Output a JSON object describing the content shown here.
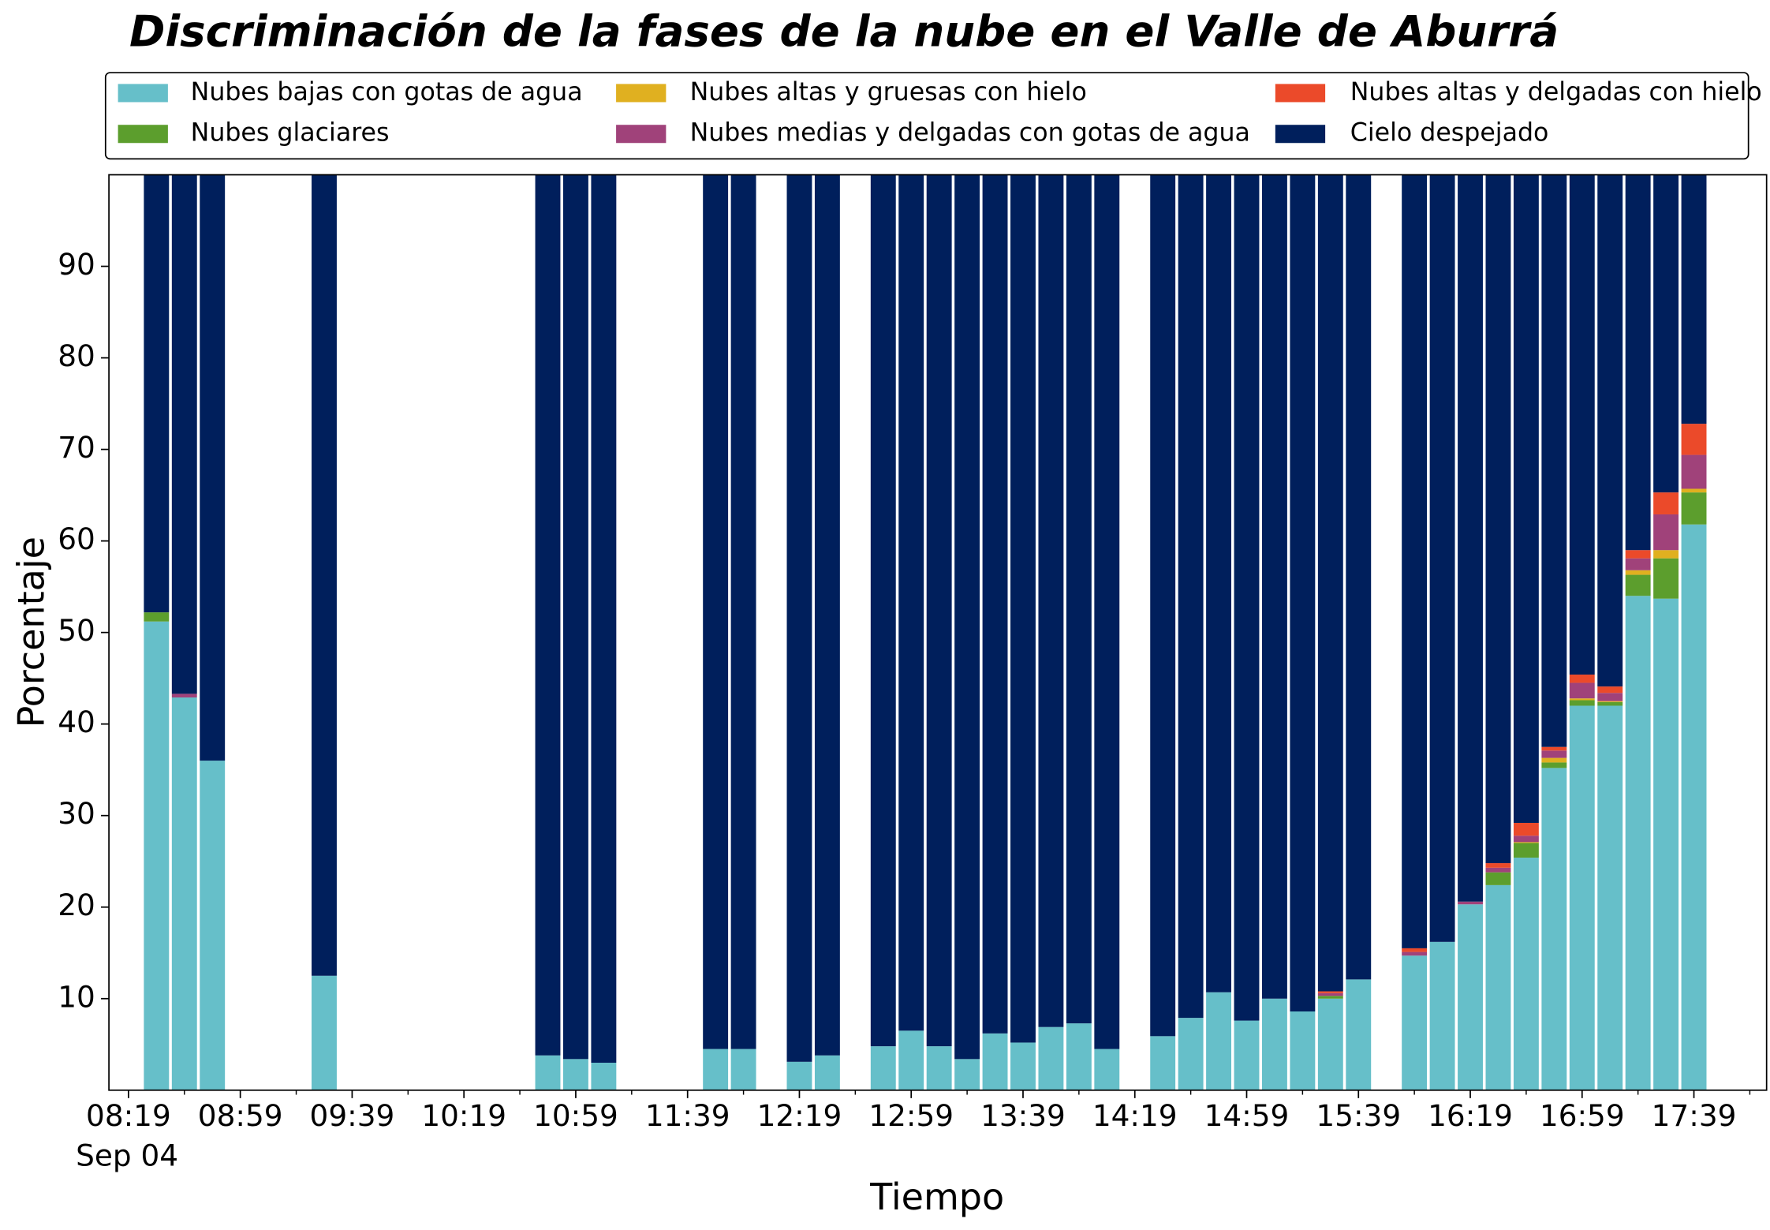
{
  "chart_data": {
    "type": "stacked_bar",
    "title": "Discriminación de la fases de la nube en el Valle de Aburrá",
    "xlabel": "Tiempo",
    "ylabel": "Porcentaje",
    "xdate_label": "Sep 04",
    "x": [
      "08:29",
      "08:39",
      "08:49",
      "09:29",
      "10:49",
      "10:59",
      "11:09",
      "11:49",
      "11:59",
      "12:19",
      "12:29",
      "12:49",
      "12:59",
      "13:09",
      "13:19",
      "13:29",
      "13:39",
      "13:49",
      "13:59",
      "14:09",
      "14:29",
      "14:39",
      "14:49",
      "14:59",
      "15:09",
      "15:19",
      "15:29",
      "15:39",
      "15:59",
      "16:09",
      "16:19",
      "16:29",
      "16:39",
      "16:49",
      "16:59",
      "17:09",
      "17:19",
      "17:29",
      "17:39"
    ],
    "series": [
      {
        "name": "Nubes bajas con gotas de agua",
        "color": "#66bfc9",
        "values": [
          51.2,
          42.9,
          36.0,
          12.5,
          3.8,
          3.4,
          3.0,
          4.5,
          4.5,
          3.1,
          3.8,
          4.8,
          6.5,
          4.8,
          3.4,
          6.2,
          5.2,
          6.9,
          7.3,
          4.5,
          5.9,
          7.9,
          10.7,
          7.6,
          10.0,
          8.6,
          10.0,
          12.1,
          14.7,
          16.2,
          20.3,
          22.4,
          25.4,
          35.2,
          42.0,
          42.0,
          54.0,
          53.7,
          61.8
        ]
      },
      {
        "name": "Nubes glaciares",
        "color": "#5c9e2d",
        "values": [
          1.0,
          0,
          0,
          0,
          0,
          0,
          0,
          0,
          0,
          0,
          0,
          0,
          0,
          0,
          0,
          0,
          0,
          0,
          0,
          0,
          0,
          0,
          0,
          0,
          0,
          0,
          0.3,
          0,
          0,
          0,
          0,
          1.4,
          1.6,
          0.6,
          0.6,
          0.4,
          2.3,
          4.4,
          3.5
        ]
      },
      {
        "name": "Nubes altas y gruesas con hielo",
        "color": "#e0b020",
        "values": [
          0,
          0,
          0,
          0,
          0,
          0,
          0,
          0,
          0,
          0,
          0,
          0,
          0,
          0,
          0,
          0,
          0,
          0,
          0,
          0,
          0,
          0,
          0,
          0,
          0,
          0,
          0,
          0,
          0,
          0,
          0,
          0,
          0.1,
          0.5,
          0.2,
          0.1,
          0.5,
          0.9,
          0.4
        ]
      },
      {
        "name": "Nubes medias y delgadas con gotas de agua",
        "color": "#a0427a",
        "values": [
          0,
          0.4,
          0,
          0,
          0,
          0,
          0,
          0,
          0,
          0,
          0,
          0,
          0,
          0,
          0,
          0,
          0,
          0,
          0,
          0,
          0,
          0,
          0,
          0,
          0,
          0,
          0.3,
          0,
          0.4,
          0,
          0.3,
          0.5,
          0.7,
          0.8,
          1.7,
          0.9,
          1.3,
          3.9,
          3.7
        ]
      },
      {
        "name": "Nubes altas y delgadas con hielo",
        "color": "#eb4a2a",
        "values": [
          0,
          0,
          0,
          0,
          0,
          0,
          0,
          0,
          0,
          0,
          0,
          0,
          0,
          0,
          0,
          0,
          0,
          0,
          0,
          0,
          0,
          0,
          0,
          0,
          0,
          0,
          0.2,
          0,
          0.4,
          0,
          0,
          0.5,
          1.4,
          0.4,
          0.9,
          0.7,
          0.9,
          2.4,
          3.4
        ]
      },
      {
        "name": "Cielo despejado",
        "color": "#001f5c",
        "values": [
          47.8,
          56.7,
          64.0,
          87.5,
          96.2,
          96.6,
          97.0,
          95.5,
          95.5,
          96.9,
          96.2,
          95.2,
          93.5,
          95.2,
          96.6,
          93.8,
          94.8,
          93.1,
          92.7,
          95.5,
          94.1,
          92.1,
          89.3,
          92.4,
          90.0,
          91.4,
          89.2,
          87.9,
          84.5,
          83.8,
          79.4,
          75.2,
          70.8,
          62.5,
          54.6,
          55.9,
          41.0,
          34.7,
          27.2
        ]
      }
    ],
    "xlim": [
      "08:12",
      "18:05"
    ],
    "xticks": [
      "08:19",
      "08:59",
      "09:39",
      "10:19",
      "10:59",
      "11:39",
      "12:19",
      "12:59",
      "13:39",
      "14:19",
      "14:59",
      "15:39",
      "16:19",
      "16:59",
      "17:39"
    ],
    "xminorticks": [
      "08:39",
      "09:19",
      "09:59",
      "10:39",
      "11:19",
      "11:59",
      "12:39",
      "13:19",
      "13:59",
      "14:39",
      "15:19",
      "15:59",
      "16:39",
      "17:19",
      "17:59"
    ],
    "ylim": [
      0,
      100
    ],
    "yticks": [
      10,
      20,
      30,
      40,
      50,
      60,
      70,
      80,
      90
    ],
    "legend": "top",
    "grid": false
  }
}
